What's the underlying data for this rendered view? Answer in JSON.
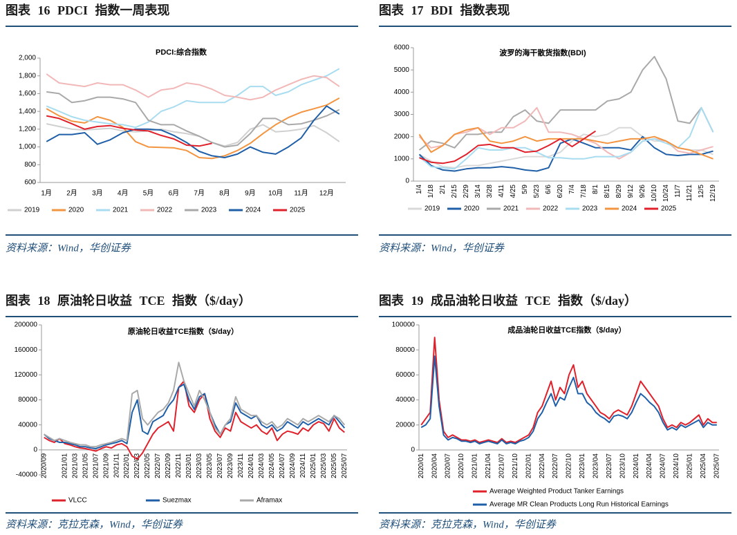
{
  "chart_data": [
    {
      "type": "line",
      "caption": "图表 16 PDCI 指数一周表现",
      "source": "资料来源：Wind，华创证券",
      "title": "PDCI:综合指数",
      "categories": [
        "1月",
        null,
        "2月",
        null,
        "3月",
        null,
        "4月",
        null,
        "5月",
        null,
        "6月",
        null,
        "7月",
        null,
        "8月",
        null,
        "9月",
        null,
        "10月",
        null,
        "11月",
        null,
        "12月",
        null
      ],
      "ylim": [
        600,
        2000
      ],
      "yticks": [
        600,
        800,
        {
          "value": 1000,
          "label": "1,000"
        },
        {
          "value": 1200,
          "label": "1,200"
        },
        {
          "value": 1400,
          "label": "1,400"
        },
        {
          "value": 1600,
          "label": "1,600"
        },
        {
          "value": 1800,
          "label": "1,800"
        },
        {
          "value": 2000,
          "label": "2,000"
        }
      ],
      "legend": "bottom",
      "series": [
        {
          "name": "2019",
          "color": "#d0d0d0",
          "values": [
            1260,
            1230,
            1200,
            1190,
            1200,
            1210,
            1180,
            1170,
            1180,
            1200,
            1170,
            1150,
            1120,
            1050,
            1010,
            1050,
            1200,
            1250,
            1170,
            1180,
            1200,
            1240,
            1160,
            1060
          ]
        },
        {
          "name": "2020",
          "color": "#f39440",
          "values": [
            1430,
            1350,
            1290,
            1270,
            1340,
            1300,
            1220,
            1060,
            1000,
            995,
            990,
            960,
            880,
            870,
            900,
            960,
            1040,
            1150,
            1250,
            1330,
            1390,
            1430,
            1470,
            1550
          ]
        },
        {
          "name": "2021",
          "color": "#a8dcf0",
          "values": [
            1460,
            1400,
            1340,
            1300,
            1280,
            1260,
            1250,
            1220,
            1280,
            1400,
            1450,
            1520,
            1500,
            1500,
            1500,
            1580,
            1680,
            1680,
            1580,
            1620,
            1700,
            1750,
            1800,
            1880
          ]
        },
        {
          "name": "2022",
          "color": "#f2b8b8",
          "values": [
            1820,
            1720,
            1700,
            1680,
            1720,
            1700,
            1700,
            1640,
            1560,
            1640,
            1660,
            1720,
            1700,
            1650,
            1580,
            1560,
            1530,
            1560,
            1640,
            1700,
            1760,
            1800,
            1780,
            1680
          ]
        },
        {
          "name": "2023",
          "color": "#a9a9a9",
          "values": [
            1620,
            1600,
            1500,
            1520,
            1560,
            1560,
            1540,
            1500,
            1300,
            1250,
            1250,
            1180,
            1120,
            1050,
            1000,
            1020,
            1150,
            1320,
            1320,
            1250,
            1260,
            1300,
            1350,
            1420
          ]
        },
        {
          "name": "2024",
          "color": "#1f5fa8",
          "values": [
            1060,
            1140,
            1140,
            1160,
            1030,
            1080,
            1160,
            1200,
            1200,
            1190,
            1130,
            1050,
            950,
            900,
            880,
            920,
            1000,
            940,
            920,
            1000,
            1100,
            1300,
            1460,
            1370
          ]
        },
        {
          "name": "2025",
          "color": "#e0202a",
          "values": [
            1350,
            1320,
            1260,
            1200,
            1230,
            1240,
            1210,
            1190,
            1180,
            1130,
            1090,
            1020,
            1010,
            1040,
            null,
            null,
            null,
            null,
            null,
            null,
            null,
            null,
            null,
            null
          ]
        }
      ]
    },
    {
      "type": "line",
      "caption": "图表 17 BDI 指数表现",
      "source": "资料来源：Wind，华创证券",
      "title": "波罗的海干散货指数(BDI)",
      "categories": [
        "1/4",
        "1/18",
        "2/1",
        "2/15",
        "2/29",
        "3/14",
        "3/28",
        "4/11",
        "4/25",
        "5/9",
        "5/23",
        "6/6",
        "6/20",
        "7/4",
        "7/18",
        "8/1",
        "8/15",
        "8/29",
        "9/12",
        "9/26",
        "10/10",
        "10/24",
        "11/7",
        "11/21",
        "12/5",
        "12/19"
      ],
      "ylim": [
        0,
        6000
      ],
      "yticks": [
        0,
        1000,
        2000,
        3000,
        4000,
        5000,
        6000
      ],
      "legend": "bottom",
      "series": [
        {
          "name": "2019",
          "color": "#d9d9d9",
          "values": [
            1200,
            900,
            650,
            600,
            700,
            700,
            800,
            900,
            1000,
            1100,
            1100,
            1100,
            1300,
            1800,
            2100,
            2000,
            2100,
            2400,
            2400,
            2000,
            1800,
            1800,
            1500,
            1400,
            1400,
            1200
          ]
        },
        {
          "name": "2020",
          "color": "#1f5fa8",
          "values": [
            1200,
            700,
            500,
            450,
            550,
            600,
            600,
            650,
            600,
            500,
            450,
            600,
            1700,
            1900,
            1700,
            1500,
            1500,
            1500,
            1400,
            2000,
            1500,
            1200,
            1150,
            1200,
            1200,
            1350
          ]
        },
        {
          "name": "2021",
          "color": "#a9a9a9",
          "values": [
            1400,
            1800,
            1700,
            1500,
            2100,
            2100,
            2200,
            2200,
            2900,
            3200,
            2700,
            2600,
            3200,
            3200,
            3200,
            3200,
            3600,
            3700,
            4000,
            5000,
            5600,
            4600,
            2700,
            2600,
            3300,
            2200
          ]
        },
        {
          "name": "2022",
          "color": "#f2b8b8",
          "values": [
            2000,
            1500,
            1600,
            2100,
            2200,
            2400,
            2100,
            2400,
            2400,
            2700,
            3300,
            2200,
            2200,
            2100,
            1900,
            1700,
            1300,
            1000,
            1300,
            1800,
            1900,
            1800,
            1350,
            1250,
            1400,
            1550
          ]
        },
        {
          "name": "2023",
          "color": "#a8dcf0",
          "values": [
            1100,
            650,
            600,
            550,
            1000,
            1500,
            1400,
            1400,
            1500,
            1500,
            1300,
            1050,
            1050,
            1000,
            1000,
            1100,
            1100,
            1100,
            1300,
            1800,
            1900,
            1700,
            1500,
            2000,
            3300,
            2200
          ]
        },
        {
          "name": "2024",
          "color": "#f39440",
          "values": [
            2100,
            1300,
            1600,
            2100,
            2300,
            2400,
            1800,
            1700,
            1800,
            2000,
            1800,
            1900,
            1900,
            1900,
            1900,
            1800,
            1700,
            1800,
            1900,
            1900,
            2000,
            1800,
            1500,
            1400,
            1200,
            1000
          ]
        },
        {
          "name": "2025",
          "color": "#e0202a",
          "values": [
            1050,
            850,
            800,
            900,
            1200,
            1600,
            1650,
            1500,
            1500,
            1300,
            1350,
            1600,
            1900,
            1550,
            1900,
            2250,
            null,
            null,
            null,
            null,
            null,
            null,
            null,
            null,
            null,
            null
          ]
        }
      ]
    },
    {
      "type": "line",
      "caption": "图表 18 原油轮日收益 TCE 指数（$/day）",
      "source": "资料来源：克拉克森，Wind，华创证券",
      "title": "原油轮日收益TCE指数（$/day）",
      "categories": [
        "2020/09",
        null,
        null,
        null,
        "2021/01",
        null,
        "2021/03",
        null,
        "2021/05",
        null,
        "2021/07",
        null,
        "2021/09",
        null,
        "2021/11",
        null,
        "2022/01",
        null,
        "2022/03",
        null,
        "2022/05",
        null,
        "2022/07",
        null,
        "2022/09",
        null,
        "2022/11",
        null,
        "2023/01",
        null,
        "2023/03",
        null,
        "2023/05",
        null,
        "2023/07",
        null,
        "2023/09",
        null,
        "2023/11",
        null,
        "2024/01",
        null,
        "2024/03",
        null,
        "2024/05",
        null,
        "2024/07",
        null,
        "2024/09",
        null,
        "2024/11",
        null,
        "2025/01",
        null,
        "2025/03",
        null,
        "2025/05",
        null,
        "2025/07"
      ],
      "ylim": [
        -40000,
        200000
      ],
      "yticks": [
        -40000,
        0,
        40000,
        80000,
        120000,
        160000,
        200000
      ],
      "legend": "bottom",
      "series": [
        {
          "name": "VLCC",
          "color": "#e0202a",
          "values": [
            20000,
            15000,
            12000,
            18000,
            10000,
            8000,
            5000,
            3000,
            2000,
            0,
            -2000,
            2000,
            5000,
            3000,
            8000,
            10000,
            5000,
            -10000,
            -15000,
            -5000,
            10000,
            25000,
            35000,
            40000,
            45000,
            30000,
            100000,
            110000,
            70000,
            60000,
            80000,
            90000,
            50000,
            30000,
            20000,
            35000,
            30000,
            60000,
            45000,
            40000,
            35000,
            40000,
            30000,
            25000,
            35000,
            15000,
            25000,
            30000,
            28000,
            25000,
            35000,
            30000,
            40000,
            45000,
            42000,
            30000,
            50000,
            35000,
            28000
          ]
        },
        {
          "name": "Suezmax",
          "color": "#1f5fa8",
          "values": [
            25000,
            18000,
            15000,
            12000,
            12000,
            10000,
            8000,
            5000,
            5000,
            3000,
            2000,
            5000,
            8000,
            10000,
            12000,
            15000,
            10000,
            60000,
            80000,
            30000,
            25000,
            45000,
            50000,
            55000,
            70000,
            80000,
            100000,
            105000,
            80000,
            65000,
            85000,
            90000,
            60000,
            40000,
            25000,
            40000,
            45000,
            75000,
            60000,
            55000,
            50000,
            55000,
            40000,
            35000,
            40000,
            30000,
            35000,
            45000,
            40000,
            35000,
            45000,
            40000,
            45000,
            50000,
            45000,
            40000,
            55000,
            45000,
            35000
          ]
        },
        {
          "name": "Aframax",
          "color": "#a9a9a9",
          "values": [
            25000,
            20000,
            15000,
            18000,
            15000,
            12000,
            10000,
            8000,
            8000,
            5000,
            5000,
            8000,
            10000,
            12000,
            15000,
            18000,
            15000,
            90000,
            95000,
            50000,
            40000,
            50000,
            60000,
            65000,
            75000,
            95000,
            140000,
            110000,
            90000,
            70000,
            95000,
            80000,
            60000,
            35000,
            25000,
            40000,
            50000,
            85000,
            65000,
            60000,
            55000,
            55000,
            45000,
            40000,
            45000,
            35000,
            40000,
            50000,
            45000,
            40000,
            50000,
            45000,
            50000,
            55000,
            50000,
            45000,
            55000,
            50000,
            40000
          ]
        }
      ]
    },
    {
      "type": "line",
      "caption": "图表 19 成品油轮日收益 TCE 指数（$/day）",
      "source": "资料来源：克拉克森，Wind，华创证券",
      "title": "成品油轮日收益TCE指数（$/day）",
      "categories": [
        "2020/01",
        null,
        null,
        "2020/04",
        null,
        null,
        "2020/07",
        null,
        null,
        "2020/10",
        null,
        null,
        "2021/01",
        null,
        null,
        "2021/04",
        null,
        null,
        "2021/07",
        null,
        null,
        "2021/10",
        null,
        null,
        "2022/01",
        null,
        null,
        "2022/04",
        null,
        null,
        "2022/07",
        null,
        null,
        "2022/10",
        null,
        null,
        "2023/01",
        null,
        null,
        "2023/04",
        null,
        null,
        "2023/07",
        null,
        null,
        "2023/10",
        null,
        null,
        "2024/01",
        null,
        null,
        "2024/04",
        null,
        null,
        "2024/07",
        null,
        null,
        "2024/10",
        null,
        null,
        "2025/01",
        null,
        null,
        "2025/04",
        null,
        null,
        "2025/07"
      ],
      "ylim": [
        0,
        100000
      ],
      "yticks": [
        0,
        20000,
        40000,
        60000,
        80000,
        100000
      ],
      "legend": "bottom-stacked",
      "series": [
        {
          "name": "Average Weighted Product Tanker Earnings",
          "color": "#e0202a",
          "values": [
            20000,
            25000,
            30000,
            90000,
            40000,
            15000,
            10000,
            12000,
            10000,
            8000,
            8000,
            7000,
            8000,
            6000,
            7000,
            8000,
            7000,
            6000,
            9000,
            6000,
            7000,
            6000,
            8000,
            10000,
            12000,
            18000,
            30000,
            35000,
            45000,
            55000,
            40000,
            50000,
            45000,
            60000,
            68000,
            50000,
            55000,
            45000,
            40000,
            35000,
            30000,
            28000,
            25000,
            30000,
            32000,
            30000,
            28000,
            35000,
            45000,
            55000,
            50000,
            45000,
            40000,
            35000,
            25000,
            18000,
            20000,
            18000,
            22000,
            20000,
            22000,
            25000,
            28000,
            20000,
            25000,
            22000,
            22000
          ]
        },
        {
          "name": "Average MR Clean Products Long Run Historical Earnings",
          "color": "#1f5fa8",
          "values": [
            18000,
            20000,
            25000,
            75000,
            35000,
            12000,
            8000,
            10000,
            9000,
            7000,
            7000,
            6000,
            7000,
            5000,
            6000,
            7000,
            6000,
            5000,
            8000,
            5000,
            6000,
            5000,
            7000,
            8000,
            10000,
            15000,
            25000,
            30000,
            38000,
            45000,
            35000,
            42000,
            40000,
            50000,
            58000,
            45000,
            45000,
            38000,
            35000,
            30000,
            27000,
            25000,
            22000,
            27000,
            28000,
            27000,
            25000,
            30000,
            38000,
            45000,
            42000,
            38000,
            35000,
            30000,
            22000,
            16000,
            18000,
            16000,
            20000,
            18000,
            20000,
            22000,
            24000,
            18000,
            22000,
            20000,
            20000
          ]
        }
      ]
    }
  ]
}
